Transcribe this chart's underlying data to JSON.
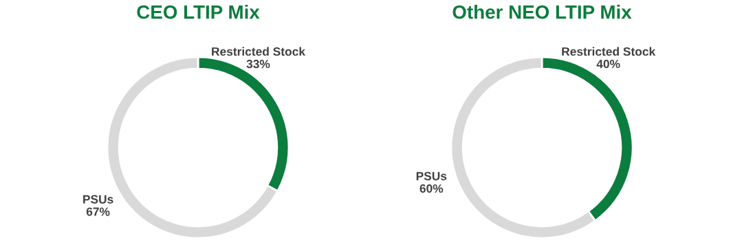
{
  "chart_data": [
    {
      "type": "donut",
      "title": "CEO LTIP Mix",
      "categories": [
        "Restricted Stock",
        "PSUs"
      ],
      "values": [
        33,
        67
      ],
      "value_labels": [
        "33%",
        "67%"
      ],
      "colors": [
        "#0b7d3e",
        "#d9d9d9"
      ]
    },
    {
      "type": "donut",
      "title": "Other NEO LTIP Mix",
      "categories": [
        "Restricted Stock",
        "PSUs"
      ],
      "values": [
        40,
        60
      ],
      "value_labels": [
        "40%",
        "60%"
      ],
      "colors": [
        "#0b7d3e",
        "#d9d9d9"
      ]
    }
  ]
}
